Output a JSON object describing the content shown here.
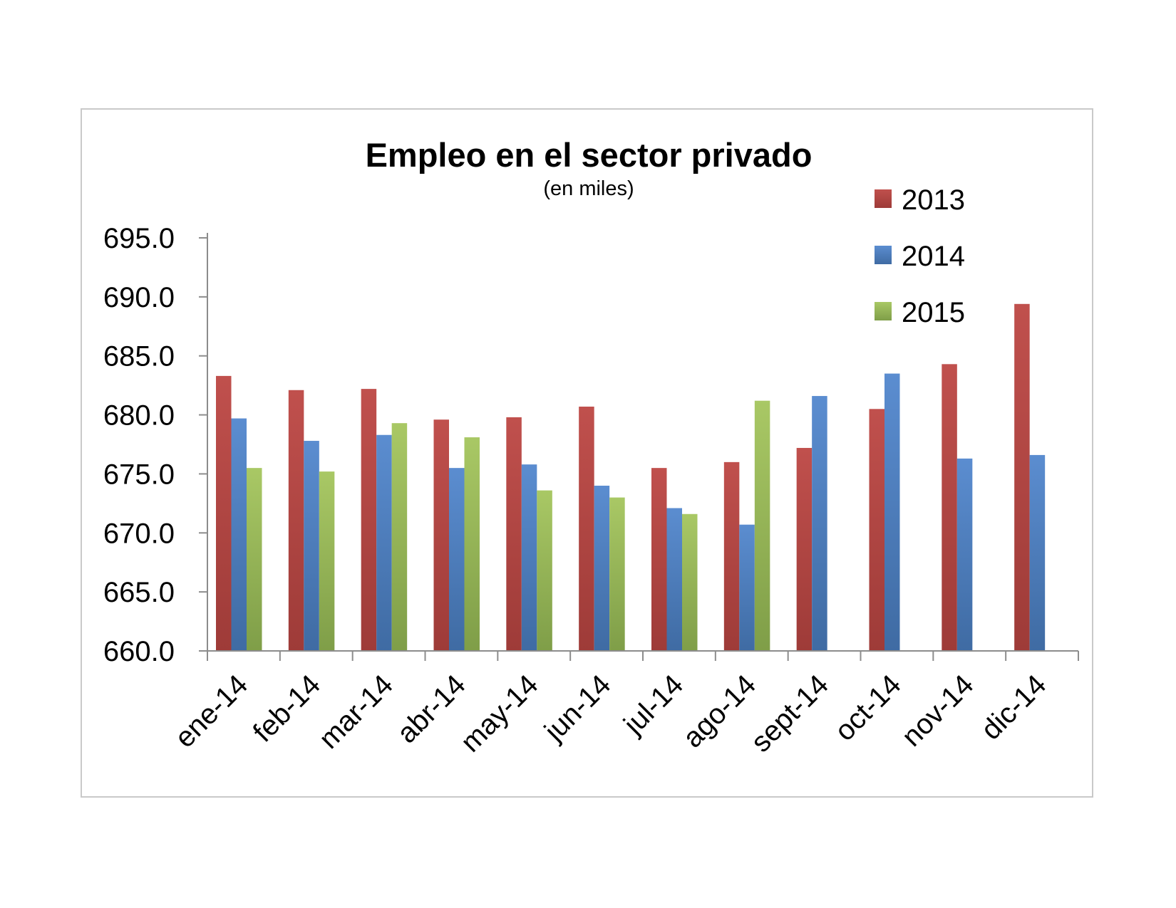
{
  "chart_data": {
    "type": "bar",
    "title": "Empleo en el sector privado",
    "subtitle": "(en miles)",
    "xlabel": "",
    "ylabel": "",
    "ylim": [
      660,
      695
    ],
    "ytick_step": 5,
    "ytick_labels": [
      "660.0",
      "665.0",
      "670.0",
      "675.0",
      "680.0",
      "685.0",
      "690.0",
      "695.0"
    ],
    "grid": false,
    "legend": "top-right",
    "categories": [
      "ene-14",
      "feb-14",
      "mar-14",
      "abr-14",
      "may-14",
      "jun-14",
      "jul-14",
      "ago-14",
      "sept-14",
      "oct-14",
      "nov-14",
      "dic-14"
    ],
    "series": [
      {
        "name": "2013",
        "color": "#c0504d",
        "values": [
          683.3,
          682.1,
          682.2,
          679.6,
          679.8,
          680.7,
          675.5,
          676.0,
          677.2,
          680.5,
          684.3,
          689.4
        ]
      },
      {
        "name": "2014",
        "color": "#4f81bd",
        "values": [
          679.7,
          677.8,
          678.3,
          675.5,
          675.8,
          674.0,
          672.1,
          670.7,
          681.6,
          683.5,
          676.3,
          676.6
        ]
      },
      {
        "name": "2015",
        "color": "#9bbb59",
        "values": [
          675.5,
          675.2,
          679.3,
          678.1,
          673.6,
          673.0,
          671.6,
          681.2,
          null,
          null,
          null,
          null
        ]
      }
    ]
  }
}
